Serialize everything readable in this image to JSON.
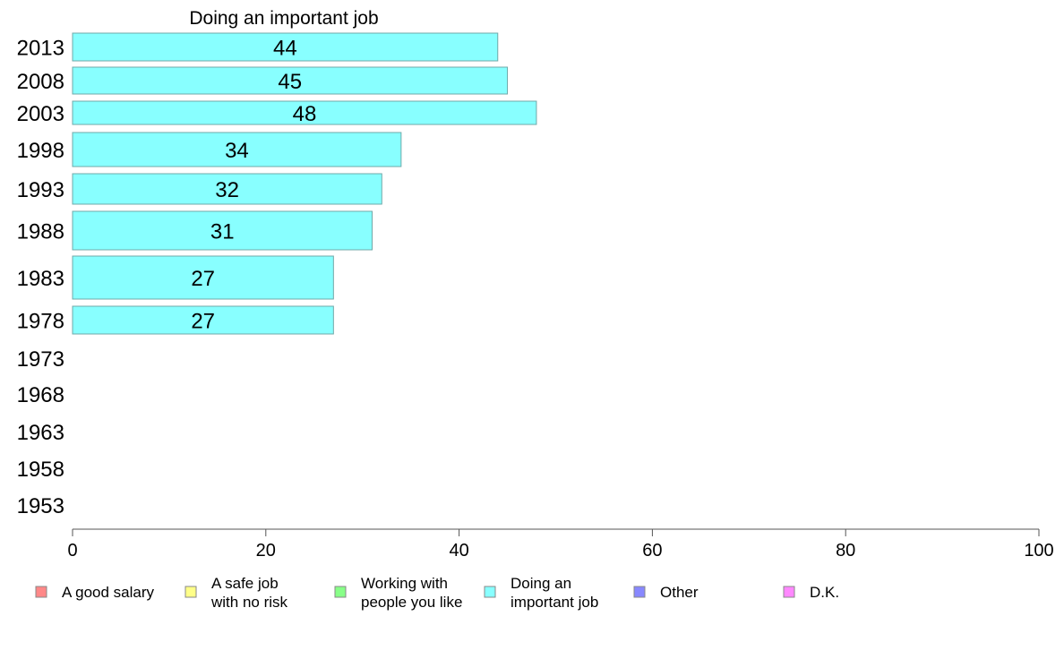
{
  "chart_data": {
    "type": "bar",
    "orientation": "horizontal",
    "title": "Doing an important job",
    "categories": [
      "2013",
      "2008",
      "2003",
      "1998",
      "1993",
      "1988",
      "1983",
      "1978",
      "1973",
      "1968",
      "1963",
      "1958",
      "1953"
    ],
    "values": [
      44,
      45,
      48,
      34,
      32,
      31,
      27,
      27,
      null,
      null,
      null,
      null,
      null
    ],
    "value_labels": [
      "44",
      "45",
      "48",
      "34",
      "32",
      "31",
      "27",
      "27",
      "",
      "",
      "",
      "",
      ""
    ],
    "xlim": [
      0,
      100
    ],
    "xticks": [
      0,
      20,
      40,
      60,
      80,
      100
    ],
    "xtick_labels": [
      "0",
      "20",
      "40",
      "60",
      "80",
      "100"
    ],
    "bar_color": "#88ffff",
    "bar_edge_color": "#6fa8a8",
    "grid": false,
    "legend_position": "bottom",
    "legend": [
      {
        "lines": [
          "A good salary"
        ],
        "color": "#ff8888"
      },
      {
        "lines": [
          "A safe job",
          "with no risk"
        ],
        "color": "#ffff88"
      },
      {
        "lines": [
          "Working with",
          "people you like"
        ],
        "color": "#88ff88"
      },
      {
        "lines": [
          "Doing an",
          "important job"
        ],
        "color": "#88ffff"
      },
      {
        "lines": [
          "Other"
        ],
        "color": "#8888ff"
      },
      {
        "lines": [
          "D.K."
        ],
        "color": "#ff88ff"
      }
    ]
  }
}
